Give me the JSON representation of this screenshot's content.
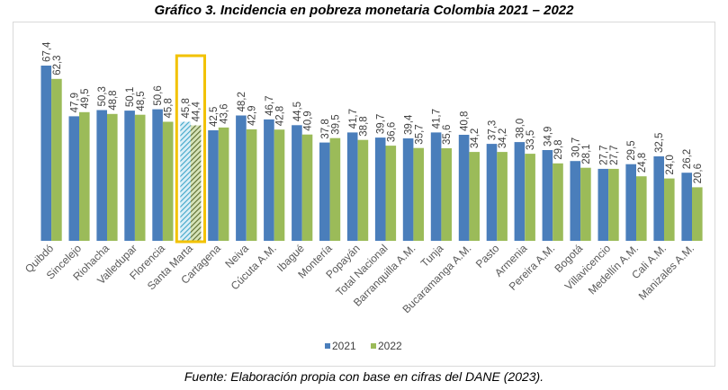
{
  "title": "Gráfico 3. Incidencia en pobreza monetaria Colombia 2021 – 2022",
  "source": "Fuente: Elaboración propia con base en cifras del DANE (2023).",
  "chart_data": {
    "type": "bar",
    "title": "Gráfico 3. Incidencia en pobreza monetaria Colombia 2021 – 2022",
    "xlabel": "",
    "ylabel": "",
    "grid": false,
    "legend_position": "bottom",
    "highlight_category": "Santa Marta",
    "categories": [
      "Quibdó",
      "Sincelejo",
      "Riohacha",
      "Valledupar",
      "Florencia",
      "Santa Marta",
      "Cartagena",
      "Neiva",
      "Cúcuta A.M.",
      "Ibagué",
      "Montería",
      "Popayán",
      "Total Nacional",
      "Barranquilla A.M.",
      "Tunja",
      "Bucaramanga A.M.",
      "Pasto",
      "Armenia",
      "Pereira A.M.",
      "Bogotá",
      "Villavicencio",
      "Medellín A.M.",
      "Cali A.M.",
      "Manizales A.M."
    ],
    "series": [
      {
        "name": "2021",
        "color": "#4a7ebb",
        "values": [
          67.4,
          47.9,
          50.3,
          50.1,
          50.6,
          45.8,
          42.5,
          48.2,
          46.7,
          44.5,
          37.8,
          41.7,
          39.7,
          39.4,
          41.7,
          40.8,
          37.3,
          38.0,
          34.9,
          30.7,
          27.7,
          29.5,
          32.5,
          26.2
        ],
        "labels": [
          "67,4",
          "47,9",
          "50,3",
          "50,1",
          "50,6",
          "45,8",
          "42,5",
          "48,2",
          "46,7",
          "44,5",
          "37,8",
          "41,7",
          "39,7",
          "39,4",
          "41,7",
          "40,8",
          "37,3",
          "38,0",
          "34,9",
          "30,7",
          "27,7",
          "29,5",
          "32,5",
          "26,2"
        ]
      },
      {
        "name": "2022",
        "color": "#9bbb59",
        "values": [
          62.3,
          49.5,
          48.8,
          48.5,
          45.8,
          44.4,
          43.6,
          42.9,
          42.8,
          40.9,
          39.5,
          38.8,
          36.6,
          35.7,
          35.6,
          34.2,
          34.2,
          33.5,
          29.8,
          28.1,
          27.7,
          24.8,
          24.0,
          20.6
        ],
        "labels": [
          "62,3",
          "49,5",
          "48,8",
          "48,5",
          "45,8",
          "44,4",
          "43,6",
          "42,9",
          "42,8",
          "40,9",
          "39,5",
          "38,8",
          "36,6",
          "35,7",
          "35,6",
          "34,2",
          "34,2",
          "33,5",
          "29,8",
          "28,1",
          "27,7",
          "24,8",
          "24,0",
          "20,6"
        ]
      }
    ],
    "legend": [
      "2021",
      "2022"
    ],
    "ylim": [
      0,
      67.4
    ]
  }
}
